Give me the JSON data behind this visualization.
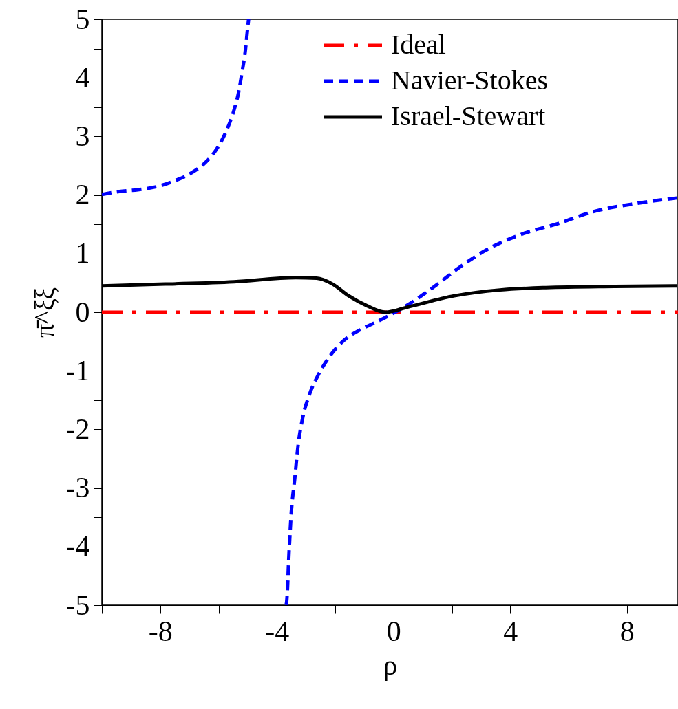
{
  "chart_data": {
    "type": "line",
    "xlabel": "ρ",
    "ylabel": "π̄^ξξ",
    "xlim": [
      -10,
      9.75
    ],
    "ylim": [
      -5,
      5
    ],
    "xticks": [
      {
        "value": -10,
        "label": null
      },
      -8,
      {
        "value": -6,
        "label": null
      },
      -4,
      {
        "value": -2,
        "label": null
      },
      0,
      {
        "value": 2,
        "label": null
      },
      4,
      {
        "value": 6,
        "label": null
      },
      8
    ],
    "yticks": [
      -5,
      {
        "value": -4.5,
        "label": null
      },
      -4,
      {
        "value": -3.5,
        "label": null
      },
      -3,
      {
        "value": -2.5,
        "label": null
      },
      -2,
      {
        "value": -1.5,
        "label": null
      },
      -1,
      {
        "value": -0.5,
        "label": null
      },
      0,
      {
        "value": 0.5,
        "label": null
      },
      1,
      {
        "value": 1.5,
        "label": null
      },
      2,
      {
        "value": 2.5,
        "label": null
      },
      3,
      {
        "value": 3.5,
        "label": null
      },
      4,
      {
        "value": 4.5,
        "label": null
      },
      5
    ],
    "grid": false,
    "legend": "top right",
    "marker": "none",
    "series": [
      {
        "name": "Ideal",
        "color": "#ff0000",
        "line_style": "dashdot",
        "x": [
          -10,
          9.75
        ],
        "values": [
          0,
          0
        ]
      },
      {
        "name": "Navier-Stokes",
        "color": "#0000ff",
        "line_style": "dashed",
        "x": [
          -10,
          -9.4,
          -8.77,
          -8.14,
          -7.52,
          -6.89,
          -6.42,
          -6.02,
          -5.71,
          -5.47,
          -5.31,
          -5.2,
          -5.09,
          -5.0,
          -4.97,
          null,
          -3.69,
          -3.67,
          -3.58,
          -3.51,
          -3.39,
          -3.27,
          -3.11,
          -2.88,
          -2.56,
          -2.17,
          -1.7,
          -1.15,
          -0.6,
          -0.13,
          0.5,
          1.29,
          2.47,
          3.1,
          4.44,
          5.62,
          6.8,
          8.37,
          9.55,
          9.72
        ],
        "values": [
          2.01,
          2.06,
          2.09,
          2.14,
          2.24,
          2.39,
          2.57,
          2.82,
          3.12,
          3.45,
          3.76,
          4.08,
          4.43,
          4.86,
          5.0,
          null,
          -5.0,
          -4.96,
          -4.06,
          -3.44,
          -2.85,
          -2.26,
          -1.79,
          -1.4,
          -1.05,
          -0.74,
          -0.48,
          -0.3,
          -0.17,
          -0.05,
          0.13,
          0.4,
          0.84,
          1.04,
          1.34,
          1.51,
          1.71,
          1.86,
          1.94,
          1.95
        ]
      },
      {
        "name": "Israel-Stewart",
        "color": "#000000",
        "line_style": "solid",
        "x": [
          -10,
          -7.83,
          -5.47,
          -3.35,
          -2.64,
          -2.09,
          -1.54,
          -0.91,
          -0.28,
          0.5,
          2.08,
          3.65,
          5.22,
          7.58,
          9.72
        ],
        "values": [
          0.45,
          0.48,
          0.52,
          0.59,
          0.58,
          0.48,
          0.28,
          0.11,
          0.0,
          0.09,
          0.28,
          0.38,
          0.42,
          0.44,
          0.45
        ]
      }
    ]
  }
}
